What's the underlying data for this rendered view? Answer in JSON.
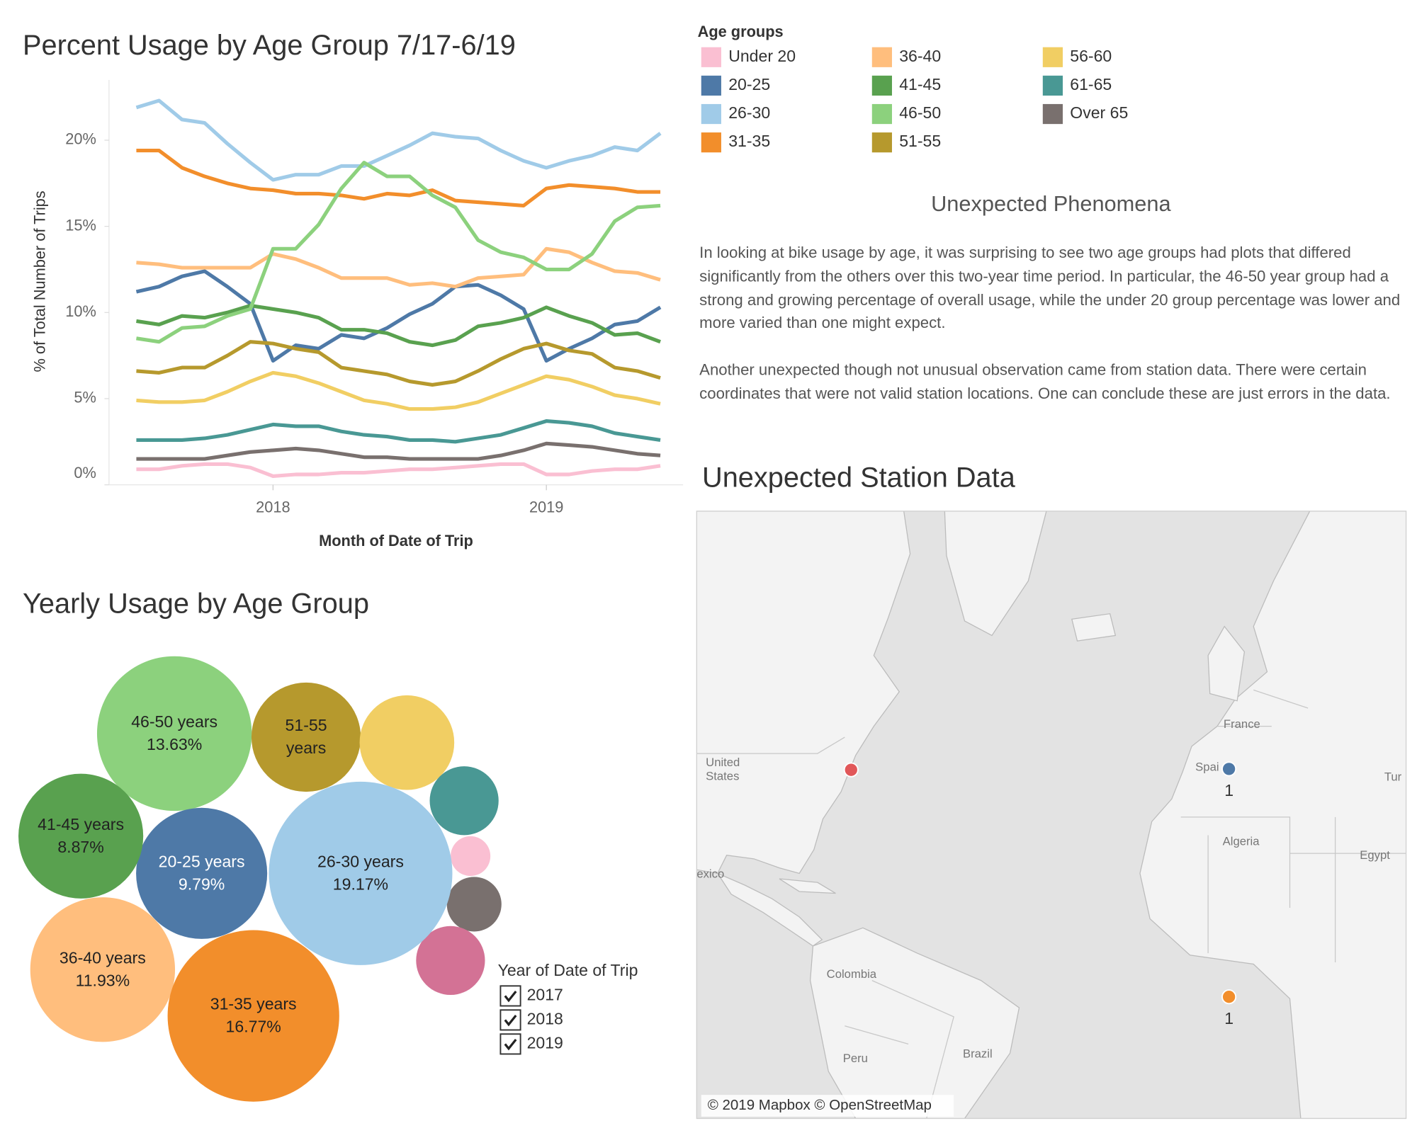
{
  "chart_data": [
    {
      "type": "line",
      "title": "Percent Usage by Age Group 7/17-6/19",
      "x_label": "Month of Date of Trip",
      "y_label": "% of Total Number of Trips",
      "legend_title": "Age groups",
      "x": [
        2017.5,
        2017.583,
        2017.667,
        2017.75,
        2017.833,
        2017.917,
        2018,
        2018.083,
        2018.167,
        2018.25,
        2018.333,
        2018.417,
        2018.5,
        2018.583,
        2018.667,
        2018.75,
        2018.833,
        2018.917,
        2019,
        2019.083,
        2019.167,
        2019.25,
        2019.333,
        2019.417
      ],
      "xlim": [
        2017.4,
        2019.5
      ],
      "xticks": [
        2018,
        2019
      ],
      "ylim": [
        0,
        23.5
      ],
      "yticks": [
        {
          "value": 0,
          "label": "0%"
        },
        {
          "value": 5,
          "label": "5%"
        },
        {
          "value": 10,
          "label": "10%"
        },
        {
          "value": 15,
          "label": "15%"
        },
        {
          "value": 20,
          "label": "20%"
        }
      ],
      "series": [
        {
          "name": "Under 20",
          "color": "#fabfd2",
          "values": [
            0.9,
            0.9,
            1.1,
            1.2,
            1.2,
            1.0,
            0.5,
            0.6,
            0.6,
            0.7,
            0.7,
            0.8,
            0.9,
            0.9,
            1.0,
            1.1,
            1.2,
            1.2,
            0.6,
            0.6,
            0.8,
            0.9,
            0.9,
            1.1
          ]
        },
        {
          "name": "20-25",
          "color": "#4e79a7",
          "values": [
            11.2,
            11.5,
            12.1,
            12.4,
            11.5,
            10.5,
            7.2,
            8.1,
            7.9,
            8.7,
            8.5,
            9.1,
            9.9,
            10.5,
            11.5,
            11.6,
            11.0,
            10.2,
            7.2,
            7.9,
            8.5,
            9.3,
            9.5,
            10.3
          ]
        },
        {
          "name": "26-30",
          "color": "#a0cbe8",
          "values": [
            21.9,
            22.3,
            21.2,
            21.0,
            19.8,
            18.7,
            17.7,
            18.0,
            18.0,
            18.5,
            18.5,
            19.1,
            19.7,
            20.4,
            20.2,
            20.1,
            19.4,
            18.8,
            18.4,
            18.8,
            19.1,
            19.6,
            19.4,
            20.4
          ]
        },
        {
          "name": "31-35",
          "color": "#f28e2b",
          "values": [
            19.4,
            19.4,
            18.4,
            17.9,
            17.5,
            17.2,
            17.1,
            16.9,
            16.9,
            16.8,
            16.6,
            16.9,
            16.8,
            17.1,
            16.5,
            16.4,
            16.3,
            16.2,
            17.2,
            17.4,
            17.3,
            17.2,
            17.0,
            17.0
          ]
        },
        {
          "name": "36-40",
          "color": "#ffbe7d",
          "values": [
            12.9,
            12.8,
            12.6,
            12.6,
            12.6,
            12.6,
            13.4,
            13.1,
            12.6,
            12.0,
            12.0,
            12.0,
            11.6,
            11.7,
            11.5,
            12.0,
            12.1,
            12.2,
            13.7,
            13.5,
            12.9,
            12.4,
            12.3,
            11.9
          ]
        },
        {
          "name": "41-45",
          "color": "#59a14f",
          "values": [
            9.5,
            9.3,
            9.8,
            9.7,
            10.0,
            10.4,
            10.2,
            10.0,
            9.7,
            9.0,
            9.0,
            8.8,
            8.3,
            8.1,
            8.4,
            9.2,
            9.4,
            9.7,
            10.3,
            9.8,
            9.4,
            8.7,
            8.8,
            8.3
          ]
        },
        {
          "name": "46-50",
          "color": "#8cd17d",
          "values": [
            8.5,
            8.3,
            9.1,
            9.2,
            9.8,
            10.2,
            13.7,
            13.7,
            15.1,
            17.2,
            18.7,
            17.9,
            17.9,
            16.8,
            16.1,
            14.2,
            13.5,
            13.2,
            12.5,
            12.5,
            13.4,
            15.3,
            16.1,
            16.2
          ]
        },
        {
          "name": "51-55",
          "color": "#b6992d",
          "values": [
            6.6,
            6.5,
            6.8,
            6.8,
            7.5,
            8.3,
            8.2,
            7.9,
            7.7,
            6.8,
            6.6,
            6.4,
            6.0,
            5.8,
            6.0,
            6.6,
            7.3,
            7.9,
            8.2,
            7.8,
            7.6,
            6.8,
            6.6,
            6.2
          ]
        },
        {
          "name": "56-60",
          "color": "#f1ce63",
          "values": [
            4.9,
            4.8,
            4.8,
            4.9,
            5.4,
            6.0,
            6.5,
            6.3,
            5.9,
            5.4,
            4.9,
            4.7,
            4.4,
            4.4,
            4.5,
            4.8,
            5.3,
            5.8,
            6.3,
            6.1,
            5.7,
            5.2,
            5.0,
            4.7
          ]
        },
        {
          "name": "61-65",
          "color": "#499894",
          "values": [
            2.6,
            2.6,
            2.6,
            2.7,
            2.9,
            3.2,
            3.5,
            3.4,
            3.4,
            3.1,
            2.9,
            2.8,
            2.6,
            2.6,
            2.5,
            2.7,
            2.9,
            3.3,
            3.7,
            3.6,
            3.4,
            3.0,
            2.8,
            2.6
          ]
        },
        {
          "name": "Over 65",
          "color": "#79706e",
          "values": [
            1.5,
            1.5,
            1.5,
            1.5,
            1.7,
            1.9,
            2.0,
            2.1,
            2.0,
            1.8,
            1.6,
            1.6,
            1.5,
            1.5,
            1.5,
            1.5,
            1.7,
            2.0,
            2.4,
            2.3,
            2.2,
            2.0,
            1.8,
            1.7
          ]
        }
      ]
    },
    {
      "type": "bubble",
      "title": "Yearly Usage by Age Group",
      "categories": [
        "46-50 years",
        "51-55 years",
        null,
        null,
        null,
        null,
        null,
        "26-30 years",
        "20-25 years",
        "41-45 years",
        "36-40 years",
        "31-35 years"
      ],
      "values": [
        13.63,
        6.8,
        5.1,
        2.7,
        0.9,
        1.7,
        2.7,
        19.17,
        9.79,
        8.87,
        11.93,
        16.77
      ],
      "value_labels": [
        "13.63%",
        null,
        null,
        null,
        null,
        null,
        null,
        "19.17%",
        "9.79%",
        "8.87%",
        "11.93%",
        "16.77%"
      ],
      "colors": [
        "#8cd17d",
        "#b6992d",
        "#f1ce63",
        "#499894",
        "#fabfd2",
        "#79706e",
        "#d37295",
        "#a0cbe8",
        "#4e79a7",
        "#59a14f",
        "#ffbe7d",
        "#f28e2b"
      ],
      "filter": {
        "title": "Year of Date of Trip",
        "options": [
          "2017",
          "2018",
          "2019"
        ]
      }
    }
  ],
  "phenomena": {
    "title": "Unexpected Phenomena",
    "paragraphs": [
      "In looking at bike usage by age, it was surprising to see two age groups had plots that differed significantly from the others over this two-year time period. In particular, the 46-50 year group had a strong and growing percentage of overall usage, while the under 20 group percentage was lower and more varied than one might expect.",
      "Another unexpected though not unusual observation came from station data. There were certain coordinates that were not valid station locations. One can conclude these are just errors in the data."
    ]
  },
  "map": {
    "title": "Unexpected Station Data",
    "places": [
      "exico",
      "United States",
      "France",
      "Spai",
      "Tur",
      "Algeria",
      "Egypt",
      "Colombia",
      "Peru",
      "Brazil"
    ],
    "points": [
      {
        "color": "#e15759"
      },
      {
        "color": "#4e79a7",
        "label": "1"
      },
      {
        "color": "#f28e2b",
        "label": "1"
      }
    ],
    "attribution": "© 2019 Mapbox © OpenStreetMap"
  }
}
